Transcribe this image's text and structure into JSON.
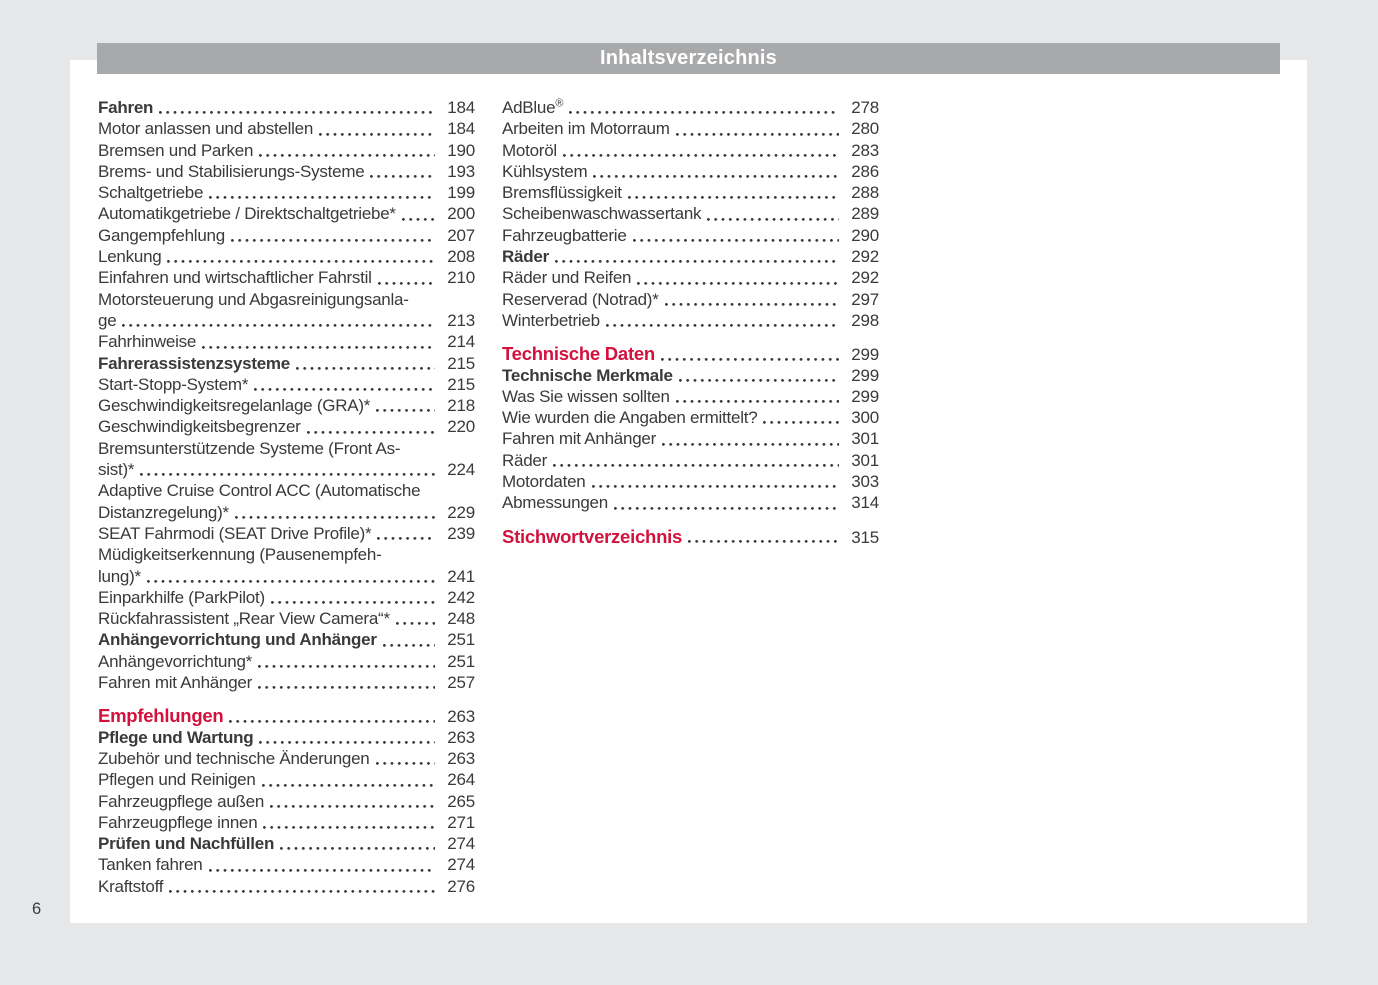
{
  "page": {
    "header_title": "Inhaltsverzeichnis",
    "page_number": "6",
    "colors": {
      "accent_red": "#d2123d",
      "header_bar": "#a8a9ab",
      "text": "#3a3a3c",
      "background": "#e6e7e9",
      "page_background": "#ffffff"
    }
  },
  "toc": {
    "columns": [
      {
        "entries": [
          {
            "label": "Fahren",
            "page": "184",
            "style": "bold"
          },
          {
            "label": "Motor anlassen und abstellen",
            "page": "184"
          },
          {
            "label": "Bremsen und Parken",
            "page": "190"
          },
          {
            "label": "Brems- und Stabilisierungs-Systeme",
            "page": "193"
          },
          {
            "label": "Schaltgetriebe",
            "page": "199"
          },
          {
            "label": "Automatikgetriebe / Direktschaltgetriebe*",
            "page": "200"
          },
          {
            "label": "Gangempfehlung",
            "page": "207"
          },
          {
            "label": "Lenkung",
            "page": "208"
          },
          {
            "label": "Einfahren und wirtschaftlicher Fahrstil",
            "page": "210"
          },
          {
            "label": "Motorsteuerung und Abgasreinigungsanla-",
            "label2": "ge",
            "page": "213"
          },
          {
            "label": "Fahrhinweise",
            "page": "214"
          },
          {
            "label": "Fahrerassistenzsysteme",
            "page": "215",
            "style": "bold"
          },
          {
            "label": "Start-Stopp-System*",
            "page": "215"
          },
          {
            "label": "Geschwindigkeitsregelanlage (GRA)*",
            "page": "218"
          },
          {
            "label": "Geschwindigkeitsbegrenzer",
            "page": "220"
          },
          {
            "label": "Bremsunterstützende Systeme (Front As-",
            "label2": "sist)*",
            "page": "224"
          },
          {
            "label": "Adaptive Cruise Control ACC (Automatische",
            "label2": "Distanzregelung)*",
            "page": "229"
          },
          {
            "label": "SEAT Fahrmodi (SEAT Drive Profile)*",
            "page": "239"
          },
          {
            "label": "Müdigkeitserkennung (Pausenempfeh-",
            "label2": "lung)*",
            "page": "241"
          },
          {
            "label": "Einparkhilfe (ParkPilot)",
            "page": "242"
          },
          {
            "label": "Rückfahrassistent „Rear View Camera“*",
            "page": "248"
          },
          {
            "label": "Anhängevorrichtung und Anhänger",
            "page": "251",
            "style": "bold"
          },
          {
            "label": "Anhängevorrichtung*",
            "page": "251"
          },
          {
            "label": "Fahren mit Anhänger",
            "page": "257"
          },
          {
            "label": "Empfehlungen",
            "page": "263",
            "style": "red",
            "gap": true
          },
          {
            "label": "Pflege und Wartung",
            "page": "263",
            "style": "bold"
          },
          {
            "label": "Zubehör und technische Änderungen",
            "page": "263"
          },
          {
            "label": "Pflegen und Reinigen",
            "page": "264"
          },
          {
            "label": "Fahrzeugpflege außen",
            "page": "265"
          },
          {
            "label": "Fahrzeugpflege innen",
            "page": "271"
          },
          {
            "label": "Prüfen und Nachfüllen",
            "page": "274",
            "style": "bold"
          },
          {
            "label": "Tanken fahren",
            "page": "274"
          },
          {
            "label": "Kraftstoff",
            "page": "276"
          }
        ]
      },
      {
        "entries": [
          {
            "label": "AdBlue",
            "sup": "®",
            "page": "278"
          },
          {
            "label": "Arbeiten im Motorraum",
            "page": "280"
          },
          {
            "label": "Motoröl",
            "page": "283"
          },
          {
            "label": "Kühlsystem",
            "page": "286"
          },
          {
            "label": "Bremsflüssigkeit",
            "page": "288"
          },
          {
            "label": "Scheibenwaschwassertank",
            "page": "289"
          },
          {
            "label": "Fahrzeugbatterie",
            "page": "290"
          },
          {
            "label": "Räder",
            "page": "292",
            "style": "bold"
          },
          {
            "label": "Räder und Reifen",
            "page": "292"
          },
          {
            "label": "Reserverad (Notrad)*",
            "page": "297"
          },
          {
            "label": "Winterbetrieb",
            "page": "298"
          },
          {
            "label": "Technische Daten",
            "page": "299",
            "style": "red",
            "gap": true
          },
          {
            "label": "Technische Merkmale",
            "page": "299",
            "style": "bold"
          },
          {
            "label": "Was Sie wissen sollten",
            "page": "299"
          },
          {
            "label": "Wie wurden die Angaben ermittelt?",
            "page": "300"
          },
          {
            "label": "Fahren mit Anhänger",
            "page": "301"
          },
          {
            "label": "Räder",
            "page": "301"
          },
          {
            "label": "Motordaten",
            "page": "303"
          },
          {
            "label": "Abmessungen",
            "page": "314"
          },
          {
            "label": "Stichwortverzeichnis",
            "page": "315",
            "style": "red",
            "gap": true
          }
        ]
      }
    ]
  }
}
